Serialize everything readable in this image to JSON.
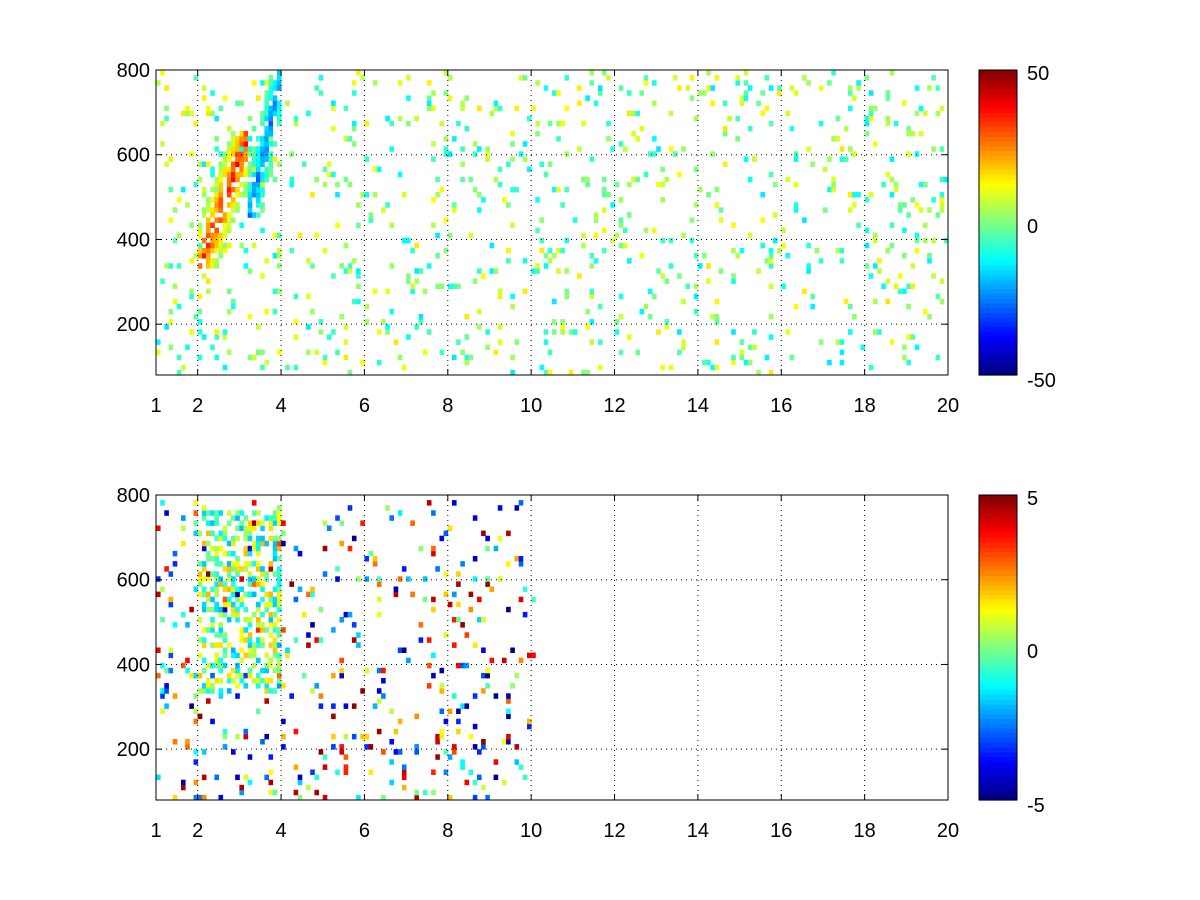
{
  "chart_data": [
    {
      "type": "heatmap",
      "title": "",
      "xlabel": "",
      "ylabel": "",
      "xlim": [
        1,
        20
      ],
      "ylim": [
        80,
        800
      ],
      "x_scale": "linear",
      "x_ticks": [
        "1",
        "2",
        "4",
        "6",
        "8",
        "10",
        "12",
        "14",
        "16",
        "18",
        "20"
      ],
      "y_ticks": [
        "200",
        "400",
        "600",
        "800"
      ],
      "grid": true,
      "colormap": "jet",
      "colorbar": {
        "min": -50,
        "max": 50,
        "ticks": [
          "50",
          "0",
          "-50"
        ]
      },
      "features": [
        {
          "description": "positive ridge",
          "x_range": [
            2.0,
            3.2
          ],
          "y_range": [
            330,
            650
          ],
          "peak_value": 40
        },
        {
          "description": "negative ridge",
          "x_range": [
            3.2,
            4.0
          ],
          "y_range": [
            450,
            800
          ],
          "peak_value": -30
        },
        {
          "description": "sparse low-amplitude speckle",
          "x_range": [
            1,
            20
          ],
          "y_range": [
            80,
            800
          ],
          "value_range": [
            -15,
            15
          ]
        }
      ]
    },
    {
      "type": "heatmap",
      "title": "",
      "xlabel": "",
      "ylabel": "",
      "xlim": [
        1,
        20
      ],
      "ylim": [
        80,
        800
      ],
      "x_scale": "linear",
      "x_ticks": [
        "1",
        "2",
        "4",
        "6",
        "8",
        "10",
        "12",
        "14",
        "16",
        "18",
        "20"
      ],
      "y_ticks": [
        "200",
        "400",
        "600",
        "800"
      ],
      "grid": true,
      "colormap": "jet",
      "colorbar": {
        "min": -5,
        "max": 5,
        "ticks": [
          "5",
          "0",
          "-5"
        ]
      },
      "features": [
        {
          "description": "mixed-sign band",
          "x_range": [
            2.0,
            4.0
          ],
          "y_range": [
            330,
            760
          ],
          "value_range": [
            -2,
            2
          ]
        },
        {
          "description": "isolated cells",
          "x_range": [
            1,
            10
          ],
          "y_range": [
            80,
            780
          ],
          "value_range": [
            -5,
            5
          ]
        }
      ]
    }
  ]
}
